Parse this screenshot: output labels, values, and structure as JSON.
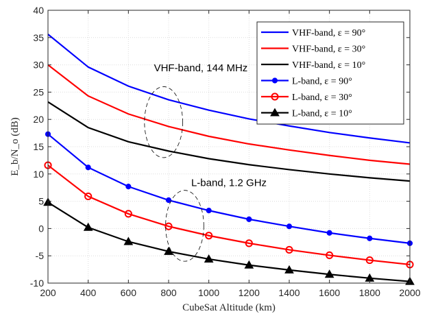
{
  "chart_data": {
    "type": "line",
    "xlabel": "CubeSat Altitude (km)",
    "ylabel": "E_b/N_o (dB)",
    "xlim": [
      200,
      2000
    ],
    "ylim": [
      -10,
      40
    ],
    "xticks": [
      200,
      400,
      600,
      800,
      1000,
      1200,
      1400,
      1600,
      1800,
      2000
    ],
    "yticks": [
      -10,
      -5,
      0,
      5,
      10,
      15,
      20,
      25,
      30,
      35,
      40
    ],
    "grid": true,
    "legend_position": "top-right",
    "x": [
      200,
      400,
      600,
      800,
      1000,
      1200,
      1400,
      1600,
      1800,
      2000
    ],
    "series": [
      {
        "name": "VHF-band, ε = 90°",
        "color": "#0000ff",
        "marker": "none",
        "values": [
          35.6,
          29.6,
          26.1,
          23.6,
          21.7,
          20.1,
          18.8,
          17.6,
          16.6,
          15.7
        ]
      },
      {
        "name": "VHF-band, ε = 30°",
        "color": "#ff0000",
        "marker": "none",
        "values": [
          30.0,
          24.3,
          21.0,
          18.7,
          16.9,
          15.5,
          14.4,
          13.4,
          12.5,
          11.8
        ]
      },
      {
        "name": "VHF-band, ε = 10°",
        "color": "#000000",
        "marker": "none",
        "values": [
          23.2,
          18.5,
          15.9,
          14.2,
          12.8,
          11.7,
          10.8,
          10.0,
          9.3,
          8.7
        ]
      },
      {
        "name": "L-band, ε = 90°",
        "color": "#0000ff",
        "marker": "dot",
        "values": [
          17.3,
          11.2,
          7.7,
          5.2,
          3.3,
          1.7,
          0.4,
          -0.8,
          -1.8,
          -2.7
        ]
      },
      {
        "name": "L-band, ε = 30°",
        "color": "#ff0000",
        "marker": "circle",
        "values": [
          11.6,
          5.9,
          2.7,
          0.4,
          -1.3,
          -2.7,
          -3.9,
          -4.9,
          -5.8,
          -6.6
        ]
      },
      {
        "name": "L-band, ε = 10°",
        "color": "#000000",
        "marker": "triangle",
        "values": [
          4.8,
          0.2,
          -2.4,
          -4.2,
          -5.6,
          -6.7,
          -7.6,
          -8.4,
          -9.1,
          -9.7
        ]
      }
    ],
    "annotations": [
      {
        "text": "VHF-band, 144 MHz",
        "x": 960,
        "y": 28.8,
        "ellipse_x": 775,
        "ellipse_y": 19.5,
        "ellipse_dx": 95,
        "ellipse_dy": 6.5
      },
      {
        "text": "L-band, 1.2 GHz",
        "x": 1100,
        "y": 7.8,
        "ellipse_x": 880,
        "ellipse_y": 0.5,
        "ellipse_dx": 95,
        "ellipse_dy": 6.5
      }
    ]
  }
}
